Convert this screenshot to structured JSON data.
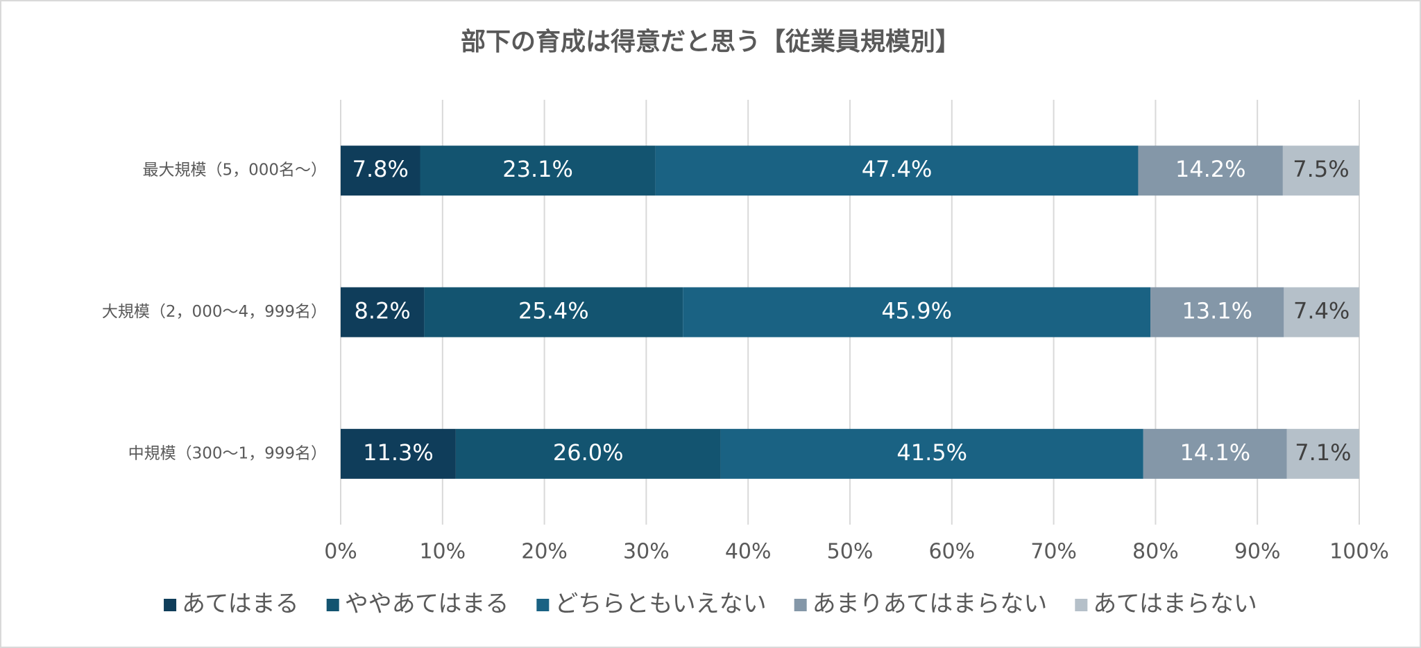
{
  "chart_data": {
    "type": "stacked-bar-horizontal",
    "title": "部下の育成は得意だと思う【従業員規模別】",
    "categories": [
      "最大規模（5，000名～）",
      "大規模（2，000～4，999名）",
      "中規模（300～1，999名）"
    ],
    "series": [
      {
        "name": "あてはまる",
        "color": "#0f3d5a",
        "label_color": "#ffffff",
        "values": [
          7.8,
          8.2,
          11.3
        ],
        "value_labels": [
          "7.8%",
          "8.2%",
          "11.3%"
        ]
      },
      {
        "name": "ややあてはまる",
        "color": "#135470",
        "label_color": "#ffffff",
        "values": [
          23.1,
          25.4,
          26.0
        ],
        "value_labels": [
          "23.1%",
          "25.4%",
          "26.0%"
        ]
      },
      {
        "name": "どちらともいえない",
        "color": "#1a6283",
        "label_color": "#ffffff",
        "values": [
          47.4,
          45.9,
          41.5
        ],
        "value_labels": [
          "47.4%",
          "45.9%",
          "41.5%"
        ]
      },
      {
        "name": "あまりあてはまらない",
        "color": "#8497a8",
        "label_color": "#ffffff",
        "values": [
          14.2,
          13.1,
          14.1
        ],
        "value_labels": [
          "14.2%",
          "13.1%",
          "14.1%"
        ]
      },
      {
        "name": "あてはまらない",
        "color": "#b5c0c9",
        "label_color": "#404040",
        "values": [
          7.5,
          7.4,
          7.1
        ],
        "value_labels": [
          "7.5%",
          "7.4%",
          "7.1%"
        ]
      }
    ],
    "xlim": [
      0,
      100
    ],
    "xticks": [
      {
        "value": 0,
        "label": "0%"
      },
      {
        "value": 10,
        "label": "10%"
      },
      {
        "value": 20,
        "label": "20%"
      },
      {
        "value": 30,
        "label": "30%"
      },
      {
        "value": 40,
        "label": "40%"
      },
      {
        "value": 50,
        "label": "50%"
      },
      {
        "value": 60,
        "label": "60%"
      },
      {
        "value": 70,
        "label": "70%"
      },
      {
        "value": 80,
        "label": "80%"
      },
      {
        "value": 90,
        "label": "90%"
      },
      {
        "value": 100,
        "label": "100%"
      }
    ],
    "grid": true,
    "legend": "bottom"
  }
}
